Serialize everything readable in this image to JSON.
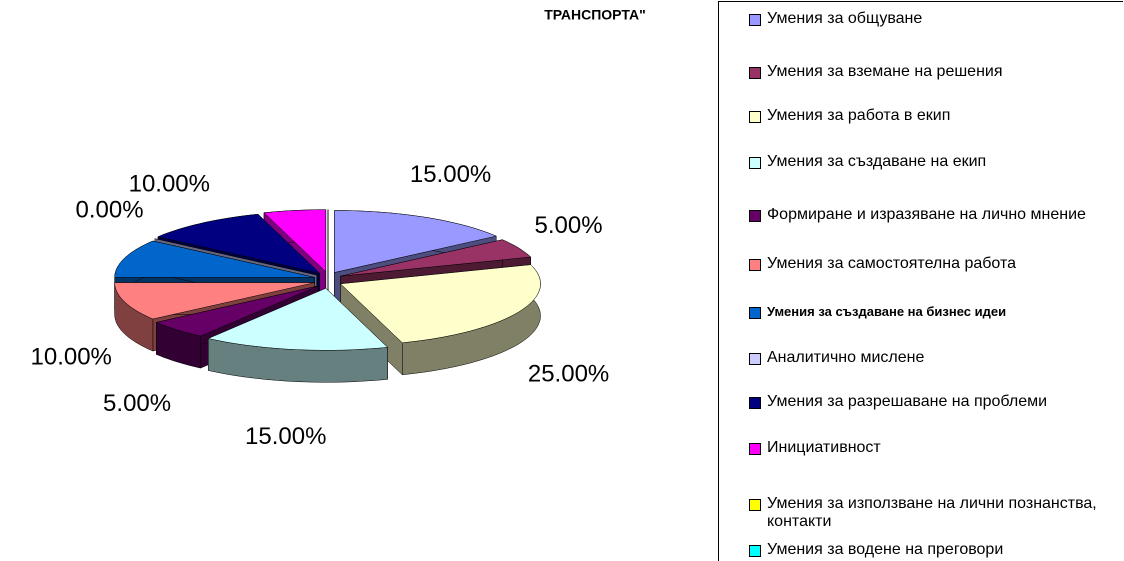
{
  "chart_data": {
    "type": "pie3d",
    "title": "ТРАНСПОРТА\"",
    "categories": [
      "Умения за общуване",
      "Умения за вземане на решения",
      "Умения за работа в екип",
      "Умения за създаване на екип",
      "Формиране и изразяване на лично мнение",
      "Умения за самостоятелна работа",
      "Умения за създаване на бизнес идеи",
      "Аналитично мислене",
      "Умения за разрешаване на проблеми",
      "Инициативност",
      "Умения за използване на лични познанства, контакти",
      "Умения за водене на преговори"
    ],
    "values": [
      15,
      5,
      25,
      15,
      5,
      10,
      10,
      0,
      10,
      5,
      0,
      0
    ],
    "value_labels": [
      "15.00%",
      "5.00%",
      "25.00%",
      "15.00%",
      "5.00%",
      "10.00%",
      null,
      "0.00%",
      "10.00%",
      null,
      null,
      null
    ],
    "colors": [
      "#9999ff",
      "#993366",
      "#ffffcc",
      "#ccffff",
      "#660066",
      "#ff8080",
      "#0066cc",
      "#ccccff",
      "#000080",
      "#ff00ff",
      "#ffff00",
      "#00ffff"
    ],
    "legend": "right"
  }
}
